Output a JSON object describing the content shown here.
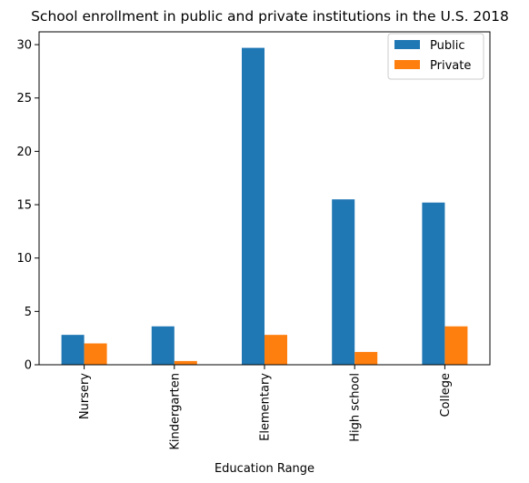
{
  "chart_data": {
    "type": "bar",
    "title": "School enrollment in public and private institutions in the U.S. 2018",
    "xlabel": "Education Range",
    "ylabel": "",
    "categories": [
      "Nursery",
      "Kindergarten",
      "Elementary",
      "High school",
      "College"
    ],
    "series": [
      {
        "name": "Public",
        "values": [
          2.8,
          3.6,
          29.7,
          15.5,
          15.2
        ],
        "color": "#1f77b4"
      },
      {
        "name": "Private",
        "values": [
          2.0,
          0.35,
          2.8,
          1.2,
          3.6
        ],
        "color": "#ff7f0e"
      }
    ],
    "ylim": [
      0,
      31.2
    ],
    "yticks": [
      0,
      5,
      10,
      15,
      20,
      25,
      30
    ],
    "grid": false,
    "legend_position": "top-right"
  }
}
